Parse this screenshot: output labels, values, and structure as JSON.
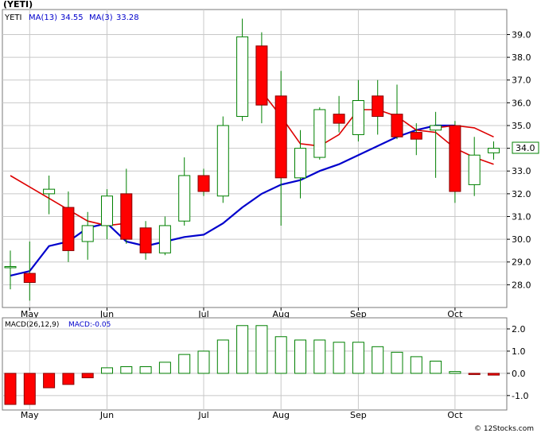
{
  "title": "(YETI)",
  "legend": {
    "ticker": "YETI",
    "ma13_label": "MA(13)",
    "ma13_value": "34.55",
    "ma3_label": "MA(3)",
    "ma3_value": "33.28"
  },
  "macd_legend": {
    "label": "MACD(26,12,9)",
    "value_label": "MACD:-0.05"
  },
  "last_price_tag": "34.0",
  "footer": "© 12Stocks.com",
  "colors": {
    "up_candle": "#ffffff",
    "up_border": "#008000",
    "down_candle": "#ff0000",
    "ma13": "#0000cc",
    "ma3": "#dd0000",
    "macd_neg": "#ff0000",
    "macd_pos": "#ffffff",
    "grid": "#c8c8c8",
    "wick": "#008000"
  },
  "chart_data": [
    {
      "type": "candlestick",
      "title": "(YETI)",
      "x_tick_labels": [
        "May",
        "Jun",
        "Jul",
        "Aug",
        "Sep",
        "Oct"
      ],
      "x_tick_index": [
        1,
        5,
        10,
        14,
        18,
        23
      ],
      "y_tick_labels": [
        "28.0",
        "29.0",
        "30.0",
        "31.0",
        "32.0",
        "33.0",
        "34.0",
        "35.0",
        "36.0",
        "37.0",
        "38.0",
        "39.0"
      ],
      "ylim": [
        27.0,
        40.1
      ],
      "grid": true,
      "candles": [
        {
          "o": 28.8,
          "h": 29.5,
          "l": 27.8,
          "c": 28.8
        },
        {
          "o": 28.5,
          "h": 29.9,
          "l": 27.3,
          "c": 28.1
        },
        {
          "o": 32.0,
          "h": 32.8,
          "l": 31.1,
          "c": 32.2
        },
        {
          "o": 31.4,
          "h": 32.1,
          "l": 29.0,
          "c": 29.5
        },
        {
          "o": 29.9,
          "h": 31.2,
          "l": 29.1,
          "c": 30.6
        },
        {
          "o": 30.6,
          "h": 32.2,
          "l": 30.0,
          "c": 31.9
        },
        {
          "o": 32.0,
          "h": 33.1,
          "l": 29.8,
          "c": 30.0
        },
        {
          "o": 30.5,
          "h": 30.8,
          "l": 29.1,
          "c": 29.4
        },
        {
          "o": 29.4,
          "h": 31.0,
          "l": 29.3,
          "c": 30.6
        },
        {
          "o": 30.8,
          "h": 33.6,
          "l": 30.6,
          "c": 32.8
        },
        {
          "o": 32.8,
          "h": 33.1,
          "l": 31.9,
          "c": 32.1
        },
        {
          "o": 31.9,
          "h": 35.4,
          "l": 31.6,
          "c": 35.0
        },
        {
          "o": 35.4,
          "h": 39.7,
          "l": 35.2,
          "c": 38.9
        },
        {
          "o": 38.5,
          "h": 39.1,
          "l": 35.1,
          "c": 35.9
        },
        {
          "o": 36.3,
          "h": 37.4,
          "l": 30.6,
          "c": 32.7
        },
        {
          "o": 32.7,
          "h": 34.8,
          "l": 31.8,
          "c": 34.0
        },
        {
          "o": 33.6,
          "h": 35.8,
          "l": 33.5,
          "c": 35.7
        },
        {
          "o": 35.5,
          "h": 36.3,
          "l": 34.7,
          "c": 35.1
        },
        {
          "o": 34.6,
          "h": 37.0,
          "l": 34.3,
          "c": 36.1
        },
        {
          "o": 36.3,
          "h": 37.0,
          "l": 34.6,
          "c": 35.4
        },
        {
          "o": 35.5,
          "h": 36.8,
          "l": 34.4,
          "c": 34.5
        },
        {
          "o": 34.7,
          "h": 35.1,
          "l": 33.7,
          "c": 34.4
        },
        {
          "o": 34.8,
          "h": 35.6,
          "l": 32.7,
          "c": 35.0
        },
        {
          "o": 35.0,
          "h": 35.2,
          "l": 31.6,
          "c": 32.1
        },
        {
          "o": 32.4,
          "h": 34.5,
          "l": 31.9,
          "c": 33.7
        },
        {
          "o": 33.8,
          "h": 34.3,
          "l": 33.5,
          "c": 34.0
        }
      ],
      "series": [
        {
          "name": "MA(13)",
          "values": [
            28.4,
            28.6,
            29.7,
            29.9,
            30.5,
            30.7,
            29.9,
            29.7,
            29.9,
            30.1,
            30.2,
            30.7,
            31.4,
            32.0,
            32.4,
            32.6,
            33.0,
            33.3,
            33.7,
            34.1,
            34.5,
            34.8,
            35.0,
            35.0,
            null,
            null
          ]
        },
        {
          "name": "MA(3)",
          "values": [
            32.8,
            32.3,
            31.8,
            31.3,
            30.8,
            30.6,
            30.7,
            null,
            null,
            null,
            null,
            null,
            null,
            36.5,
            35.4,
            34.2,
            34.1,
            34.6,
            35.7,
            35.7,
            35.4,
            34.8,
            34.7,
            34.0,
            33.6,
            33.3
          ]
        },
        {
          "name": "MA(3) tail",
          "values": [
            null,
            null,
            null,
            null,
            null,
            null,
            null,
            null,
            null,
            null,
            null,
            null,
            null,
            null,
            null,
            null,
            null,
            null,
            null,
            null,
            null,
            null,
            34.9,
            35.0,
            34.9,
            34.5
          ]
        }
      ]
    },
    {
      "type": "bar",
      "title": "MACD(26,12,9)",
      "x_tick_labels": [
        "May",
        "Jun",
        "Jul",
        "Aug",
        "Sep",
        "Oct"
      ],
      "y_tick_labels": [
        "-1.0",
        "0.0",
        "1.0",
        "2.0"
      ],
      "ylim": [
        -1.65,
        2.5
      ],
      "values": [
        -1.4,
        -1.4,
        -0.65,
        -0.5,
        -0.2,
        0.25,
        0.3,
        0.3,
        0.5,
        0.85,
        1.0,
        1.5,
        2.15,
        2.15,
        1.65,
        1.5,
        1.5,
        1.4,
        1.4,
        1.2,
        0.95,
        0.75,
        0.55,
        0.08,
        -0.05,
        -0.08
      ]
    }
  ]
}
